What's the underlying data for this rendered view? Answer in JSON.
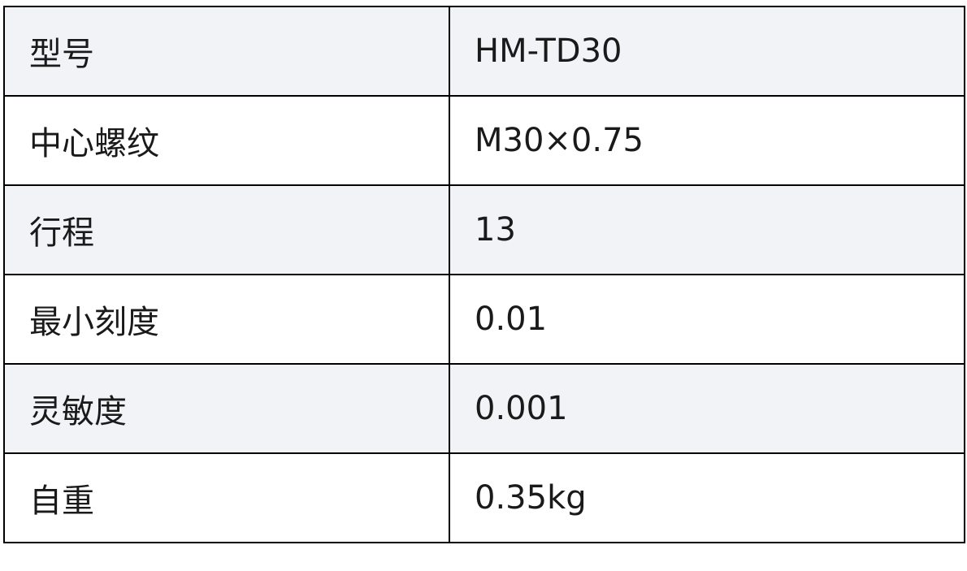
{
  "table": {
    "rows": [
      [
        "型号",
        "HM-TD30"
      ],
      [
        "中心螺纹",
        "M30×0.75"
      ],
      [
        "行程",
        "13"
      ],
      [
        "最小刻度",
        "0.01"
      ],
      [
        "灵敏度",
        "0.001"
      ],
      [
        "自重",
        "0.35kg"
      ]
    ]
  }
}
